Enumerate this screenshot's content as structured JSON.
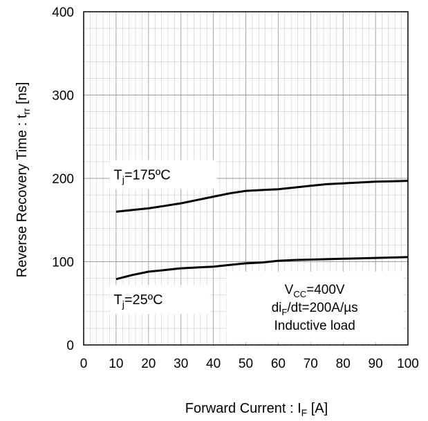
{
  "chart_data": {
    "type": "line",
    "xlabel": {
      "main": "Forward Current  : I",
      "sub": "F",
      "unit": " [A]"
    },
    "ylabel": {
      "main": "Reverse Recovery Time  : t",
      "sub": "rr",
      "unit": " [ns]"
    },
    "xlim": [
      0,
      100
    ],
    "ylim": [
      0,
      400
    ],
    "x_ticks": [
      "0",
      "10",
      "20",
      "30",
      "40",
      "50",
      "60",
      "70",
      "80",
      "90",
      "100"
    ],
    "y_ticks": [
      "0",
      "100",
      "200",
      "300",
      "400"
    ],
    "grid": true,
    "series": [
      {
        "label": {
          "pre": "T",
          "sub": "j",
          "post": "=175ºC"
        },
        "x": [
          10,
          15,
          20,
          25,
          30,
          35,
          40,
          45,
          50,
          55,
          60,
          65,
          70,
          75,
          80,
          85,
          90,
          95,
          100
        ],
        "y": [
          160,
          162,
          164,
          167,
          170,
          174,
          178,
          182,
          185,
          186,
          187,
          189,
          191,
          193,
          194,
          195,
          196,
          196.5,
          197
        ]
      },
      {
        "label": {
          "pre": "T",
          "sub": "j",
          "post": "=25ºC"
        },
        "x": [
          10,
          15,
          20,
          25,
          30,
          35,
          40,
          45,
          50,
          55,
          60,
          65,
          70,
          75,
          80,
          85,
          90,
          95,
          100
        ],
        "y": [
          79,
          84,
          88,
          90,
          92,
          93,
          94,
          96,
          98,
          99,
          101,
          102,
          102.5,
          103,
          103.5,
          104,
          104.5,
          105,
          105.5
        ]
      }
    ],
    "annotation": {
      "line1": {
        "pre": "V",
        "sub": "CC",
        "post": "=400V"
      },
      "line2": {
        "pre": "di",
        "sub": "F",
        "post": "/dt=200A/µs"
      },
      "line3": "Inductive load"
    }
  }
}
